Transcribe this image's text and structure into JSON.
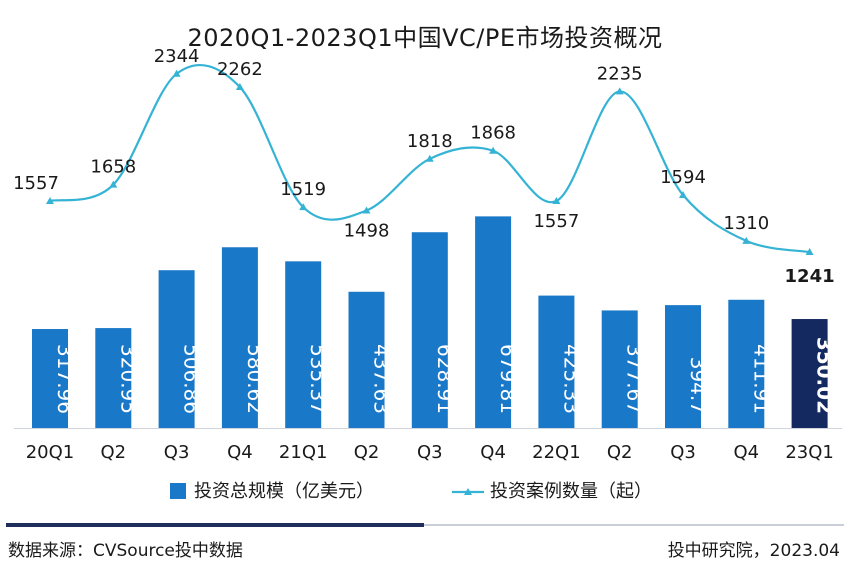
{
  "chart_data": {
    "type": "bar",
    "title": "2020Q1-2023Q1中国VC/PE市场投资概况",
    "categories": [
      "20Q1",
      "Q2",
      "Q3",
      "Q4",
      "21Q1",
      "Q2",
      "Q3",
      "Q4",
      "22Q1",
      "Q2",
      "Q3",
      "Q4",
      "23Q1"
    ],
    "series": [
      {
        "name": "投资总规模（亿美元）",
        "type": "bar",
        "values": [
          317.96,
          320.95,
          506.86,
          580.62,
          535.37,
          437.63,
          628.91,
          679.81,
          425.33,
          377.67,
          394.7,
          411.91,
          350.02
        ],
        "labels": [
          "317.96",
          "320.95",
          "506.86",
          "580.62",
          "535.37",
          "437.63",
          "628.91",
          "679.81",
          "425.33",
          "377.67",
          "394.7",
          "411.91",
          "350.02"
        ]
      },
      {
        "name": "投资案例数量（起）",
        "type": "line",
        "values": [
          1557,
          1658,
          2344,
          2262,
          1519,
          1498,
          1818,
          1868,
          1557,
          2235,
          1594,
          1310,
          1241
        ]
      }
    ],
    "highlight_index": 12,
    "colors": {
      "bar": "#1a78c8",
      "bar_highlight": "#13295f",
      "line": "#35b3d5",
      "text": "#1a1a1a",
      "axis": "#cfd3da"
    },
    "legend_position": "bottom"
  },
  "footer": {
    "source": "数据来源：CVSource投中数据",
    "publisher": "投中研究院，2023.04"
  }
}
